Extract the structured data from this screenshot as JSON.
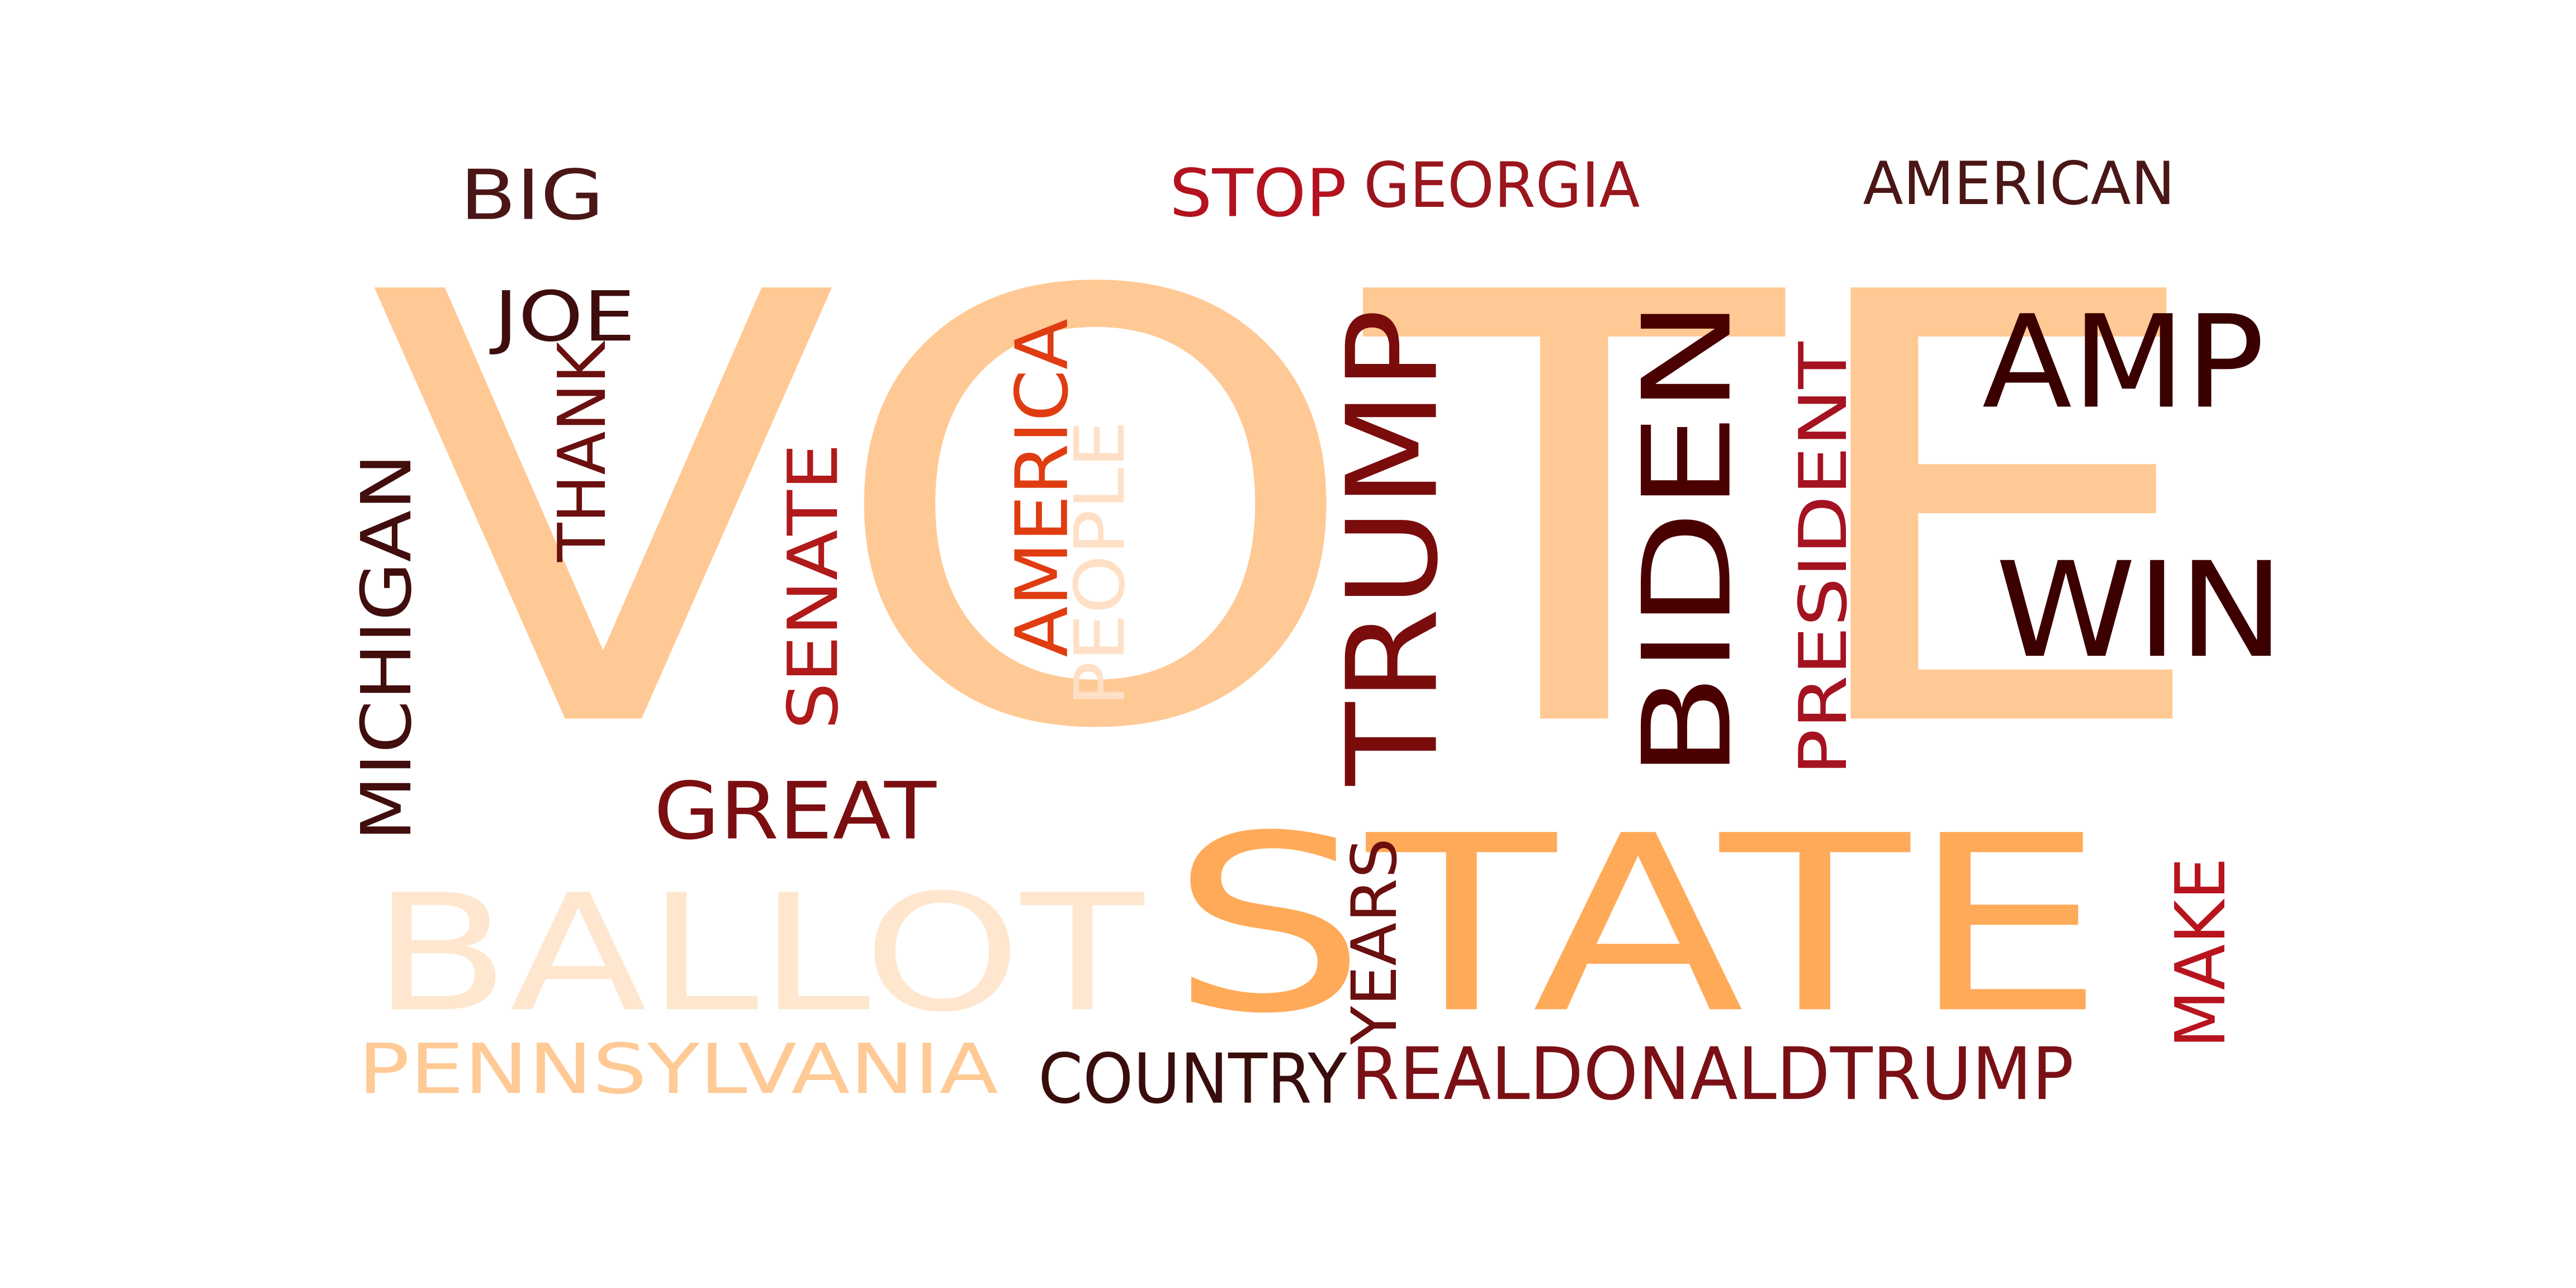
{
  "words": [
    {
      "text": "VOTE",
      "color": "#ffc995"
    },
    {
      "text": "STATE",
      "color": "#ffaa58"
    },
    {
      "text": "BALLOT",
      "color": "#ffe6ce"
    },
    {
      "text": "PENNSYLVANIA",
      "color": "#ffca95"
    },
    {
      "text": "BIDEN",
      "color": "#4a0000"
    },
    {
      "text": "TRUMP",
      "color": "#7a0c0c"
    },
    {
      "text": "AMP",
      "color": "#3a0000"
    },
    {
      "text": "WIN",
      "color": "#3d0000"
    },
    {
      "text": "GREAT",
      "color": "#7a0e10"
    },
    {
      "text": "SENATE",
      "color": "#b01a1a"
    },
    {
      "text": "AMERICA",
      "color": "#e03c12"
    },
    {
      "text": "PEOPLE",
      "color": "#ffe0c6"
    },
    {
      "text": "PRESIDENT",
      "color": "#a51220"
    },
    {
      "text": "MICHIGAN",
      "color": "#420d0d"
    },
    {
      "text": "THANK",
      "color": "#6b0f0f"
    },
    {
      "text": "JOE",
      "color": "#3f0d0d"
    },
    {
      "text": "BIG",
      "color": "#4a1616"
    },
    {
      "text": "STOP",
      "color": "#b3121e"
    },
    {
      "text": "GEORGIA",
      "color": "#99161d"
    },
    {
      "text": "AMERICAN",
      "color": "#4a1616"
    },
    {
      "text": "YEARS",
      "color": "#6b0f0f"
    },
    {
      "text": "MAKE",
      "color": "#b8141d"
    },
    {
      "text": "COUNTRY",
      "color": "#3a0d0d"
    },
    {
      "text": "REALDONALDTRUMP",
      "color": "#7a1016"
    }
  ]
}
